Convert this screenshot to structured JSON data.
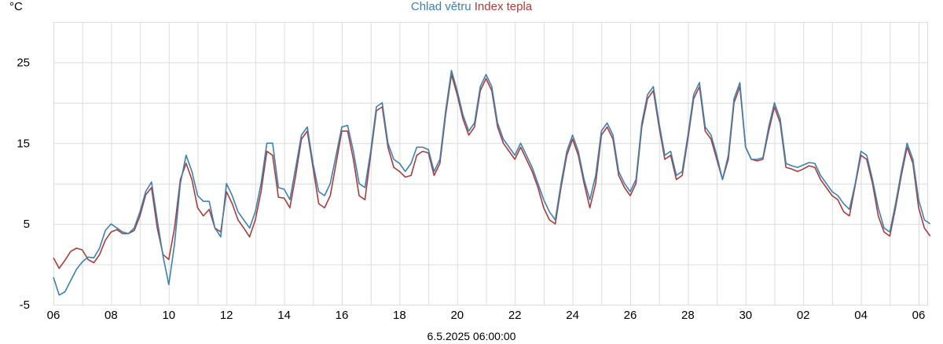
{
  "chart_data": {
    "type": "line",
    "title": "",
    "ylabel": "°C",
    "xlabel": "6.5.2025 06:00:00",
    "x_ticks": [
      "06",
      "08",
      "10",
      "12",
      "14",
      "16",
      "18",
      "20",
      "22",
      "24",
      "26",
      "28",
      "30",
      "02",
      "04",
      "06"
    ],
    "y_ticks": [
      "25",
      "15",
      "5",
      "-5"
    ],
    "y_tick_values": [
      25,
      15,
      5,
      -5
    ],
    "ylim": [
      -5,
      30
    ],
    "xlim": [
      0,
      30.3
    ],
    "grid": true,
    "legend_position": "top-center",
    "series": [
      {
        "name": "Index tepla",
        "color": "#b03a3a",
        "points": [
          [
            0,
            0.8
          ],
          [
            0.2,
            -0.5
          ],
          [
            0.4,
            0.5
          ],
          [
            0.6,
            1.6
          ],
          [
            0.8,
            2.0
          ],
          [
            1.0,
            1.8
          ],
          [
            1.2,
            0.6
          ],
          [
            1.4,
            0.2
          ],
          [
            1.6,
            1.2
          ],
          [
            1.8,
            3.0
          ],
          [
            2.0,
            4.0
          ],
          [
            2.2,
            4.3
          ],
          [
            2.4,
            3.8
          ],
          [
            2.6,
            3.8
          ],
          [
            2.8,
            4.2
          ],
          [
            3.0,
            6.0
          ],
          [
            3.2,
            8.6
          ],
          [
            3.4,
            9.5
          ],
          [
            3.6,
            4.5
          ],
          [
            3.8,
            1.2
          ],
          [
            4.0,
            0.6
          ],
          [
            4.2,
            4.5
          ],
          [
            4.4,
            10.5
          ],
          [
            4.6,
            12.5
          ],
          [
            4.8,
            10.5
          ],
          [
            5.0,
            7.0
          ],
          [
            5.2,
            6.0
          ],
          [
            5.4,
            6.8
          ],
          [
            5.6,
            4.5
          ],
          [
            5.8,
            4.0
          ],
          [
            6.0,
            9.0
          ],
          [
            6.2,
            7.5
          ],
          [
            6.4,
            5.5
          ],
          [
            6.6,
            4.5
          ],
          [
            6.8,
            3.4
          ],
          [
            7.0,
            5.5
          ],
          [
            7.2,
            9.0
          ],
          [
            7.4,
            14.0
          ],
          [
            7.6,
            13.5
          ],
          [
            7.8,
            8.3
          ],
          [
            8.0,
            8.2
          ],
          [
            8.2,
            7.0
          ],
          [
            8.4,
            11.0
          ],
          [
            8.6,
            15.5
          ],
          [
            8.8,
            16.5
          ],
          [
            9.0,
            12.0
          ],
          [
            9.2,
            7.5
          ],
          [
            9.4,
            7.0
          ],
          [
            9.6,
            8.5
          ],
          [
            9.8,
            12.5
          ],
          [
            10.0,
            16.5
          ],
          [
            10.2,
            16.5
          ],
          [
            10.4,
            13.0
          ],
          [
            10.6,
            8.5
          ],
          [
            10.8,
            8.0
          ],
          [
            11.0,
            13.5
          ],
          [
            11.2,
            19.0
          ],
          [
            11.4,
            19.5
          ],
          [
            11.6,
            14.5
          ],
          [
            11.8,
            12.0
          ],
          [
            12.0,
            11.5
          ],
          [
            12.2,
            10.8
          ],
          [
            12.4,
            11.0
          ],
          [
            12.6,
            13.5
          ],
          [
            12.8,
            14.0
          ],
          [
            13.0,
            13.8
          ],
          [
            13.2,
            11.0
          ],
          [
            13.4,
            12.5
          ],
          [
            13.6,
            18.5
          ],
          [
            13.8,
            23.5
          ],
          [
            14.0,
            21.0
          ],
          [
            14.2,
            18.0
          ],
          [
            14.4,
            16.0
          ],
          [
            14.6,
            17.0
          ],
          [
            14.8,
            21.5
          ],
          [
            15.0,
            23.0
          ],
          [
            15.2,
            21.5
          ],
          [
            15.4,
            17.0
          ],
          [
            15.6,
            15.0
          ],
          [
            15.8,
            14.0
          ],
          [
            16.0,
            13.0
          ],
          [
            16.2,
            14.5
          ],
          [
            16.4,
            13.0
          ],
          [
            16.6,
            11.5
          ],
          [
            16.8,
            9.5
          ],
          [
            17.0,
            7.0
          ],
          [
            17.2,
            5.5
          ],
          [
            17.4,
            5.0
          ],
          [
            17.6,
            9.5
          ],
          [
            17.8,
            13.5
          ],
          [
            18.0,
            15.5
          ],
          [
            18.2,
            13.5
          ],
          [
            18.4,
            10.0
          ],
          [
            18.6,
            7.0
          ],
          [
            18.8,
            10.0
          ],
          [
            19.0,
            16.0
          ],
          [
            19.2,
            17.0
          ],
          [
            19.4,
            15.5
          ],
          [
            19.6,
            11.0
          ],
          [
            19.8,
            9.5
          ],
          [
            20.0,
            8.5
          ],
          [
            20.2,
            10.0
          ],
          [
            20.4,
            17.0
          ],
          [
            20.6,
            20.5
          ],
          [
            20.8,
            21.5
          ],
          [
            21.0,
            17.0
          ],
          [
            21.2,
            13.0
          ],
          [
            21.4,
            13.5
          ],
          [
            21.6,
            10.5
          ],
          [
            21.8,
            11.0
          ],
          [
            22.0,
            15.5
          ],
          [
            22.2,
            20.5
          ],
          [
            22.4,
            22.0
          ],
          [
            22.6,
            16.5
          ],
          [
            22.8,
            15.5
          ],
          [
            23.0,
            13.0
          ],
          [
            23.2,
            10.5
          ],
          [
            23.4,
            13.0
          ],
          [
            23.6,
            20.0
          ],
          [
            23.8,
            22.0
          ],
          [
            24.0,
            14.5
          ],
          [
            24.2,
            13.0
          ],
          [
            24.4,
            12.8
          ],
          [
            24.6,
            13.0
          ],
          [
            24.8,
            16.5
          ],
          [
            25.0,
            19.5
          ],
          [
            25.2,
            17.5
          ],
          [
            25.4,
            12.0
          ],
          [
            25.6,
            11.8
          ],
          [
            25.8,
            11.5
          ],
          [
            26.0,
            11.8
          ],
          [
            26.2,
            12.2
          ],
          [
            26.4,
            12.0
          ],
          [
            26.6,
            10.5
          ],
          [
            26.8,
            9.5
          ],
          [
            27.0,
            8.5
          ],
          [
            27.2,
            8.0
          ],
          [
            27.4,
            6.5
          ],
          [
            27.6,
            6.0
          ],
          [
            27.8,
            9.8
          ],
          [
            28.0,
            13.5
          ],
          [
            28.2,
            13.0
          ],
          [
            28.4,
            10.0
          ],
          [
            28.6,
            6.0
          ],
          [
            28.8,
            4.0
          ],
          [
            29.0,
            3.5
          ],
          [
            29.2,
            7.0
          ],
          [
            29.4,
            11.0
          ],
          [
            29.6,
            14.5
          ],
          [
            29.8,
            12.5
          ],
          [
            30.0,
            7.0
          ],
          [
            30.2,
            4.5
          ],
          [
            30.4,
            3.5
          ]
        ]
      },
      {
        "name": "Chlad větru",
        "color": "#3a82b4",
        "points": [
          [
            0,
            -1.6
          ],
          [
            0.2,
            -3.8
          ],
          [
            0.4,
            -3.4
          ],
          [
            0.6,
            -2.0
          ],
          [
            0.8,
            -0.6
          ],
          [
            1.0,
            0.3
          ],
          [
            1.2,
            0.9
          ],
          [
            1.4,
            0.8
          ],
          [
            1.6,
            2.0
          ],
          [
            1.8,
            4.2
          ],
          [
            2.0,
            5.0
          ],
          [
            2.2,
            4.5
          ],
          [
            2.4,
            4.0
          ],
          [
            2.6,
            3.8
          ],
          [
            2.8,
            4.5
          ],
          [
            3.0,
            6.5
          ],
          [
            3.2,
            9.0
          ],
          [
            3.4,
            10.2
          ],
          [
            3.6,
            5.5
          ],
          [
            3.8,
            1.0
          ],
          [
            4.0,
            -2.5
          ],
          [
            4.2,
            2.5
          ],
          [
            4.4,
            10.0
          ],
          [
            4.6,
            13.5
          ],
          [
            4.8,
            11.5
          ],
          [
            5.0,
            8.5
          ],
          [
            5.2,
            7.8
          ],
          [
            5.4,
            7.8
          ],
          [
            5.6,
            4.5
          ],
          [
            5.8,
            3.4
          ],
          [
            6.0,
            10.0
          ],
          [
            6.2,
            8.5
          ],
          [
            6.4,
            6.5
          ],
          [
            6.6,
            5.5
          ],
          [
            6.8,
            4.5
          ],
          [
            7.0,
            6.5
          ],
          [
            7.2,
            10.0
          ],
          [
            7.4,
            15.0
          ],
          [
            7.6,
            15.0
          ],
          [
            7.8,
            9.5
          ],
          [
            8.0,
            9.3
          ],
          [
            8.2,
            8.0
          ],
          [
            8.4,
            12.0
          ],
          [
            8.6,
            16.0
          ],
          [
            8.8,
            17.0
          ],
          [
            9.0,
            12.5
          ],
          [
            9.2,
            9.0
          ],
          [
            9.4,
            8.5
          ],
          [
            9.6,
            10.0
          ],
          [
            9.8,
            13.5
          ],
          [
            10.0,
            17.0
          ],
          [
            10.2,
            17.2
          ],
          [
            10.4,
            14.0
          ],
          [
            10.6,
            10.0
          ],
          [
            10.8,
            9.5
          ],
          [
            11.0,
            14.0
          ],
          [
            11.2,
            19.5
          ],
          [
            11.4,
            20.0
          ],
          [
            11.6,
            15.0
          ],
          [
            11.8,
            13.0
          ],
          [
            12.0,
            12.5
          ],
          [
            12.2,
            11.5
          ],
          [
            12.4,
            12.5
          ],
          [
            12.6,
            14.5
          ],
          [
            12.8,
            14.5
          ],
          [
            13.0,
            14.2
          ],
          [
            13.2,
            11.5
          ],
          [
            13.4,
            13.0
          ],
          [
            13.6,
            19.0
          ],
          [
            13.8,
            24.0
          ],
          [
            14.0,
            21.5
          ],
          [
            14.2,
            18.5
          ],
          [
            14.4,
            16.5
          ],
          [
            14.6,
            17.5
          ],
          [
            14.8,
            22.0
          ],
          [
            15.0,
            23.5
          ],
          [
            15.2,
            22.0
          ],
          [
            15.4,
            17.5
          ],
          [
            15.6,
            15.5
          ],
          [
            15.8,
            14.5
          ],
          [
            16.0,
            13.5
          ],
          [
            16.2,
            15.0
          ],
          [
            16.4,
            13.5
          ],
          [
            16.6,
            12.0
          ],
          [
            16.8,
            10.0
          ],
          [
            17.0,
            8.0
          ],
          [
            17.2,
            6.5
          ],
          [
            17.4,
            5.5
          ],
          [
            17.6,
            10.0
          ],
          [
            17.8,
            14.0
          ],
          [
            18.0,
            16.0
          ],
          [
            18.2,
            14.0
          ],
          [
            18.4,
            10.5
          ],
          [
            18.6,
            8.0
          ],
          [
            18.8,
            11.0
          ],
          [
            19.0,
            16.5
          ],
          [
            19.2,
            17.5
          ],
          [
            19.4,
            16.0
          ],
          [
            19.6,
            11.5
          ],
          [
            19.8,
            10.0
          ],
          [
            20.0,
            9.0
          ],
          [
            20.2,
            10.5
          ],
          [
            20.4,
            17.5
          ],
          [
            20.6,
            21.0
          ],
          [
            20.8,
            22.0
          ],
          [
            21.0,
            17.5
          ],
          [
            21.2,
            13.5
          ],
          [
            21.4,
            14.0
          ],
          [
            21.6,
            11.0
          ],
          [
            21.8,
            11.5
          ],
          [
            22.0,
            16.0
          ],
          [
            22.2,
            21.0
          ],
          [
            22.4,
            22.5
          ],
          [
            22.6,
            17.0
          ],
          [
            22.8,
            16.0
          ],
          [
            23.0,
            13.5
          ],
          [
            23.2,
            10.5
          ],
          [
            23.4,
            13.5
          ],
          [
            23.6,
            20.5
          ],
          [
            23.8,
            22.5
          ],
          [
            24.0,
            14.5
          ],
          [
            24.2,
            13.0
          ],
          [
            24.4,
            13.0
          ],
          [
            24.6,
            13.2
          ],
          [
            24.8,
            17.0
          ],
          [
            25.0,
            20.0
          ],
          [
            25.2,
            18.0
          ],
          [
            25.4,
            12.5
          ],
          [
            25.6,
            12.2
          ],
          [
            25.8,
            12.0
          ],
          [
            26.0,
            12.3
          ],
          [
            26.2,
            12.6
          ],
          [
            26.4,
            12.5
          ],
          [
            26.6,
            11.0
          ],
          [
            26.8,
            10.0
          ],
          [
            27.0,
            9.0
          ],
          [
            27.2,
            8.5
          ],
          [
            27.4,
            7.5
          ],
          [
            27.6,
            6.8
          ],
          [
            27.8,
            10.0
          ],
          [
            28.0,
            14.0
          ],
          [
            28.2,
            13.5
          ],
          [
            28.4,
            10.5
          ],
          [
            28.6,
            7.0
          ],
          [
            28.8,
            4.5
          ],
          [
            29.0,
            4.0
          ],
          [
            29.2,
            7.5
          ],
          [
            29.4,
            11.5
          ],
          [
            29.6,
            15.0
          ],
          [
            29.8,
            13.0
          ],
          [
            30.0,
            8.0
          ],
          [
            30.2,
            5.5
          ],
          [
            30.4,
            5.0
          ]
        ]
      }
    ]
  },
  "legend": {
    "series1_label": "Chlad větru",
    "series2_label": "Index tepla"
  },
  "unit_label": "°C",
  "footer_timestamp": "6.5.2025 06:00:00"
}
